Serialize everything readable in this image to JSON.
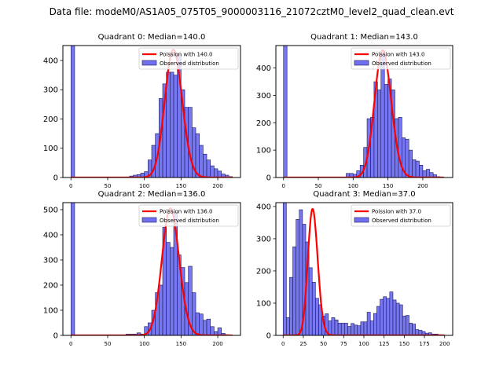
{
  "suptitle": "Data file: modeM0/AS1A05_075T05_9000003116_21072cztM0_level2_quad_clean.evt",
  "colors": {
    "bar_fill": "#7070f0",
    "bar_edge": "#1a1a5a",
    "poisson_line": "#ff0000"
  },
  "chart_data": [
    {
      "type": "bar",
      "title": "Quadrant 0: Median=140.0",
      "xlim": [
        -11,
        231
      ],
      "ylim": [
        0,
        451
      ],
      "xticks": [
        0,
        50,
        100,
        150,
        200
      ],
      "yticks": [
        0,
        100,
        200,
        300,
        400
      ],
      "legend": {
        "placement": "top-right",
        "entries": [
          "Poission with 140.0",
          "Observed distribution"
        ]
      },
      "bin_width": 5,
      "bins": [
        0,
        5,
        10,
        15,
        20,
        25,
        30,
        35,
        40,
        45,
        50,
        55,
        60,
        65,
        70,
        75,
        80,
        85,
        90,
        95,
        100,
        105,
        110,
        115,
        120,
        125,
        130,
        135,
        140,
        145,
        150,
        155,
        160,
        165,
        170,
        175,
        180,
        185,
        190,
        195,
        200,
        205,
        210,
        215
      ],
      "values": [
        460,
        0,
        0,
        0,
        0,
        0,
        0,
        0,
        0,
        0,
        0,
        0,
        0,
        0,
        0,
        2,
        5,
        8,
        10,
        15,
        20,
        60,
        110,
        150,
        270,
        320,
        360,
        360,
        350,
        420,
        300,
        240,
        240,
        170,
        150,
        110,
        80,
        60,
        40,
        30,
        22,
        12,
        8,
        3
      ],
      "poisson_mean": 140.0,
      "poisson_peak": 437
    },
    {
      "type": "bar",
      "title": "Quadrant 1: Median=143.0",
      "xlim": [
        -11,
        243
      ],
      "ylim": [
        0,
        482
      ],
      "xticks": [
        0,
        50,
        100,
        150,
        200
      ],
      "yticks": [
        0,
        100,
        200,
        300,
        400
      ],
      "legend": {
        "placement": "top-right",
        "entries": [
          "Poission with 143.0",
          "Observed distribution"
        ]
      },
      "bin_width": 5,
      "bins": [
        0,
        5,
        10,
        15,
        20,
        25,
        30,
        35,
        40,
        45,
        50,
        55,
        60,
        65,
        70,
        75,
        80,
        85,
        90,
        95,
        100,
        105,
        110,
        115,
        120,
        125,
        130,
        135,
        140,
        145,
        150,
        155,
        160,
        165,
        170,
        175,
        180,
        185,
        190,
        195,
        200,
        205,
        210,
        215,
        220,
        225
      ],
      "values": [
        490,
        0,
        0,
        0,
        0,
        0,
        0,
        0,
        0,
        0,
        0,
        0,
        0,
        0,
        0,
        0,
        0,
        0,
        15,
        15,
        12,
        25,
        45,
        110,
        215,
        220,
        350,
        320,
        450,
        340,
        360,
        320,
        215,
        220,
        145,
        140,
        100,
        65,
        60,
        45,
        25,
        30,
        18,
        10,
        3,
        2
      ],
      "poisson_mean": 143.0,
      "poisson_peak": 465
    },
    {
      "type": "bar",
      "title": "Quadrant 2: Median=136.0",
      "xlim": [
        -11,
        231
      ],
      "ylim": [
        0,
        528
      ],
      "xticks": [
        0,
        50,
        100,
        150,
        200
      ],
      "yticks": [
        0,
        100,
        200,
        300,
        400,
        500
      ],
      "legend": {
        "placement": "top-right",
        "entries": [
          "Poission with 136.0",
          "Observed distribution"
        ]
      },
      "bin_width": 5,
      "bins": [
        0,
        5,
        10,
        15,
        20,
        25,
        30,
        35,
        40,
        45,
        50,
        55,
        60,
        65,
        70,
        75,
        80,
        85,
        90,
        95,
        100,
        105,
        110,
        115,
        120,
        125,
        130,
        135,
        140,
        145,
        150,
        155,
        160,
        165,
        170,
        175,
        180,
        185,
        190,
        195,
        200,
        205,
        210,
        215
      ],
      "values": [
        530,
        0,
        0,
        0,
        0,
        0,
        0,
        0,
        0,
        0,
        0,
        0,
        0,
        0,
        0,
        5,
        5,
        5,
        10,
        5,
        35,
        50,
        100,
        170,
        200,
        430,
        370,
        350,
        490,
        320,
        270,
        210,
        275,
        170,
        90,
        85,
        60,
        65,
        35,
        15,
        30,
        8,
        3,
        1
      ],
      "poisson_mean": 136.0,
      "poisson_peak": 505
    },
    {
      "type": "bar",
      "title": "Quadrant 3: Median=37.0",
      "xlim": [
        -9,
        210
      ],
      "ylim": [
        0,
        412
      ],
      "xticks": [
        0,
        25,
        50,
        75,
        100,
        125,
        150,
        175,
        200
      ],
      "yticks": [
        0,
        100,
        200,
        300,
        400
      ],
      "legend": {
        "placement": "top-right",
        "entries": [
          "Poission with 37.0",
          "Observed distribution"
        ]
      },
      "bin_width": 4,
      "bins": [
        0,
        4,
        8,
        12,
        16,
        20,
        24,
        28,
        32,
        36,
        40,
        44,
        48,
        52,
        56,
        60,
        64,
        68,
        72,
        76,
        80,
        84,
        88,
        92,
        96,
        100,
        104,
        108,
        112,
        116,
        120,
        124,
        128,
        132,
        136,
        140,
        144,
        148,
        152,
        156,
        160,
        164,
        168,
        172,
        176,
        180,
        184,
        188,
        192,
        196
      ],
      "values": [
        415,
        55,
        180,
        275,
        360,
        390,
        345,
        290,
        210,
        165,
        115,
        95,
        60,
        67,
        45,
        55,
        48,
        38,
        38,
        38,
        28,
        37,
        32,
        30,
        42,
        42,
        72,
        45,
        68,
        90,
        112,
        120,
        115,
        135,
        110,
        100,
        95,
        60,
        62,
        38,
        35,
        18,
        16,
        12,
        7,
        8,
        4,
        4,
        2,
        1
      ],
      "poisson_mean": 37.0,
      "poisson_peak": 392
    }
  ]
}
